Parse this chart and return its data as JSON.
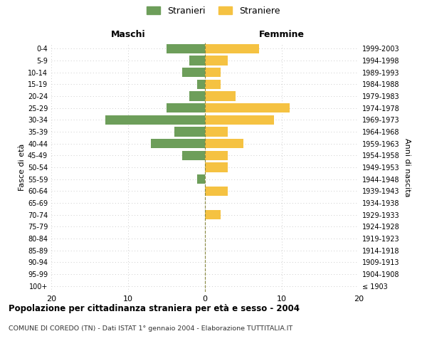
{
  "age_groups": [
    "100+",
    "95-99",
    "90-94",
    "85-89",
    "80-84",
    "75-79",
    "70-74",
    "65-69",
    "60-64",
    "55-59",
    "50-54",
    "45-49",
    "40-44",
    "35-39",
    "30-34",
    "25-29",
    "20-24",
    "15-19",
    "10-14",
    "5-9",
    "0-4"
  ],
  "birth_years": [
    "≤ 1903",
    "1904-1908",
    "1909-1913",
    "1914-1918",
    "1919-1923",
    "1924-1928",
    "1929-1933",
    "1934-1938",
    "1939-1943",
    "1944-1948",
    "1949-1953",
    "1954-1958",
    "1959-1963",
    "1964-1968",
    "1969-1973",
    "1974-1978",
    "1979-1983",
    "1984-1988",
    "1989-1993",
    "1994-1998",
    "1999-2003"
  ],
  "maschi": [
    0,
    0,
    0,
    0,
    0,
    0,
    0,
    0,
    0,
    1,
    0,
    3,
    7,
    4,
    13,
    5,
    2,
    1,
    3,
    2,
    5
  ],
  "femmine": [
    0,
    0,
    0,
    0,
    0,
    0,
    2,
    0,
    3,
    0,
    3,
    3,
    5,
    3,
    9,
    11,
    4,
    2,
    2,
    3,
    7
  ],
  "male_color": "#6d9e5a",
  "female_color": "#f5c242",
  "title": "Popolazione per cittadinanza straniera per età e sesso - 2004",
  "subtitle": "COMUNE DI COREDO (TN) - Dati ISTAT 1° gennaio 2004 - Elaborazione TUTTITALIA.IT",
  "xlabel_left": "Maschi",
  "xlabel_right": "Femmine",
  "ylabel_left": "Fasce di età",
  "ylabel_right": "Anni di nascita",
  "legend_male": "Stranieri",
  "legend_female": "Straniere",
  "xlim": 20,
  "bar_height": 0.8,
  "background_color": "#ffffff",
  "grid_color": "#cccccc"
}
